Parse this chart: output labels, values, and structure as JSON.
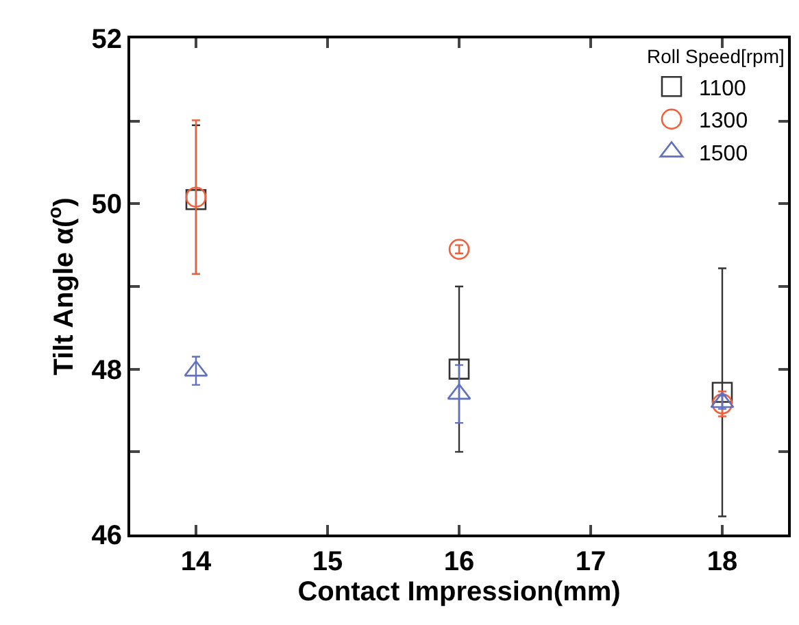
{
  "chart_data": {
    "type": "scatter",
    "xlabel": "Contact Impression(mm)",
    "ylabel": "Tilt Angle α($^{o}$)",
    "legend_title": "Roll Speed[rpm]",
    "x": [
      14,
      16,
      18
    ],
    "series": [
      {
        "name": "1100",
        "color": "#333333",
        "marker": "square",
        "values": [
          50.05,
          48.0,
          47.72
        ],
        "errors": [
          0.9,
          1.0,
          1.5
        ]
      },
      {
        "name": "1300",
        "color": "#f0603c",
        "marker": "circle",
        "values": [
          50.08,
          49.45,
          47.58
        ],
        "errors": [
          0.93,
          0.05,
          0.15
        ]
      },
      {
        "name": "1500",
        "color": "#6070c0",
        "marker": "triangle",
        "values": [
          47.98,
          47.7,
          47.6
        ],
        "errors": [
          0.17,
          0.35,
          0.08
        ]
      }
    ],
    "xlim": [
      13.5,
      18.5
    ],
    "xticks": [
      14,
      15,
      16,
      17,
      18
    ],
    "ylim": [
      46,
      52
    ],
    "yticks": [
      46,
      {
        "value": 47,
        "label": null
      },
      48,
      {
        "value": 49,
        "label": null
      },
      50,
      {
        "value": 51,
        "label": null
      },
      52
    ],
    "legend": "top right"
  }
}
